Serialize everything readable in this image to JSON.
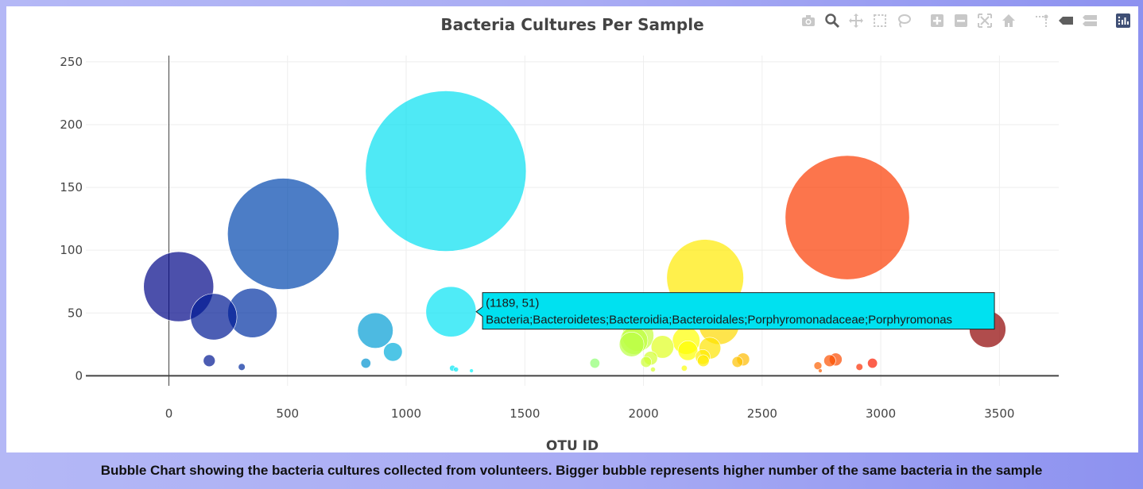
{
  "caption": "Bubble Chart showing the bacteria cultures collected from volunteers. Bigger bubble represents higher number of the same bacteria in the sample",
  "modebar": {
    "icons": [
      "camera-icon",
      "zoom-icon",
      "pan-icon",
      "box-select-icon",
      "lasso-icon",
      "zoom-in-icon",
      "zoom-out-icon",
      "autoscale-icon",
      "reset-axes-icon",
      "spike-lines-icon",
      "hover-closest-icon",
      "hover-compare-icon",
      "plotly-logo-icon"
    ],
    "icon_color": "#c8c8c8",
    "active_color": "#5e5e5e",
    "logo_color": "#3f4f75"
  },
  "chart_data": {
    "type": "scatter",
    "mode": "bubble",
    "title": "Bacteria Cultures Per Sample",
    "xlabel": "OTU ID",
    "ylabel": "",
    "xlim": [
      -350,
      3750
    ],
    "ylim": [
      -8,
      255
    ],
    "xticks": [
      0,
      500,
      1000,
      1500,
      2000,
      2500,
      3000,
      3500
    ],
    "yticks": [
      0,
      50,
      100,
      150,
      200,
      250
    ],
    "grid": true,
    "colorscale": "Jet",
    "colorscale_range": [
      0,
      3500
    ],
    "points": [
      {
        "x": 41,
        "y": 71
      },
      {
        "x": 189,
        "y": 47
      },
      {
        "x": 352,
        "y": 50
      },
      {
        "x": 482,
        "y": 113
      },
      {
        "x": 170,
        "y": 12
      },
      {
        "x": 307,
        "y": 7
      },
      {
        "x": 870,
        "y": 36
      },
      {
        "x": 944,
        "y": 19
      },
      {
        "x": 830,
        "y": 10
      },
      {
        "x": 1167,
        "y": 163
      },
      {
        "x": 1189,
        "y": 51
      },
      {
        "x": 1195,
        "y": 6
      },
      {
        "x": 1210,
        "y": 5
      },
      {
        "x": 1275,
        "y": 4
      },
      {
        "x": 1795,
        "y": 10
      },
      {
        "x": 1960,
        "y": 28
      },
      {
        "x": 1977,
        "y": 32
      },
      {
        "x": 1950,
        "y": 25
      },
      {
        "x": 2011,
        "y": 11
      },
      {
        "x": 2030,
        "y": 14
      },
      {
        "x": 2080,
        "y": 23
      },
      {
        "x": 2040,
        "y": 5
      },
      {
        "x": 2180,
        "y": 28
      },
      {
        "x": 2187,
        "y": 20
      },
      {
        "x": 2172,
        "y": 6
      },
      {
        "x": 2260,
        "y": 78
      },
      {
        "x": 2318,
        "y": 41
      },
      {
        "x": 2280,
        "y": 22
      },
      {
        "x": 2250,
        "y": 15
      },
      {
        "x": 2252,
        "y": 12
      },
      {
        "x": 2396,
        "y": 11
      },
      {
        "x": 2420,
        "y": 13
      },
      {
        "x": 2735,
        "y": 8
      },
      {
        "x": 2745,
        "y": 4
      },
      {
        "x": 2785,
        "y": 12
      },
      {
        "x": 2810,
        "y": 13
      },
      {
        "x": 2859,
        "y": 126
      },
      {
        "x": 2910,
        "y": 7
      },
      {
        "x": 2965,
        "y": 10
      },
      {
        "x": 3450,
        "y": 37
      }
    ],
    "hover": {
      "x": 1189,
      "y": 51,
      "label": "(1189, 51)",
      "text": "Bacteria;Bacteroidetes;Bacteroidia;Bacteroidales;Porphyromonadaceae;Porphyromonas",
      "color": "#00e1f0"
    }
  }
}
